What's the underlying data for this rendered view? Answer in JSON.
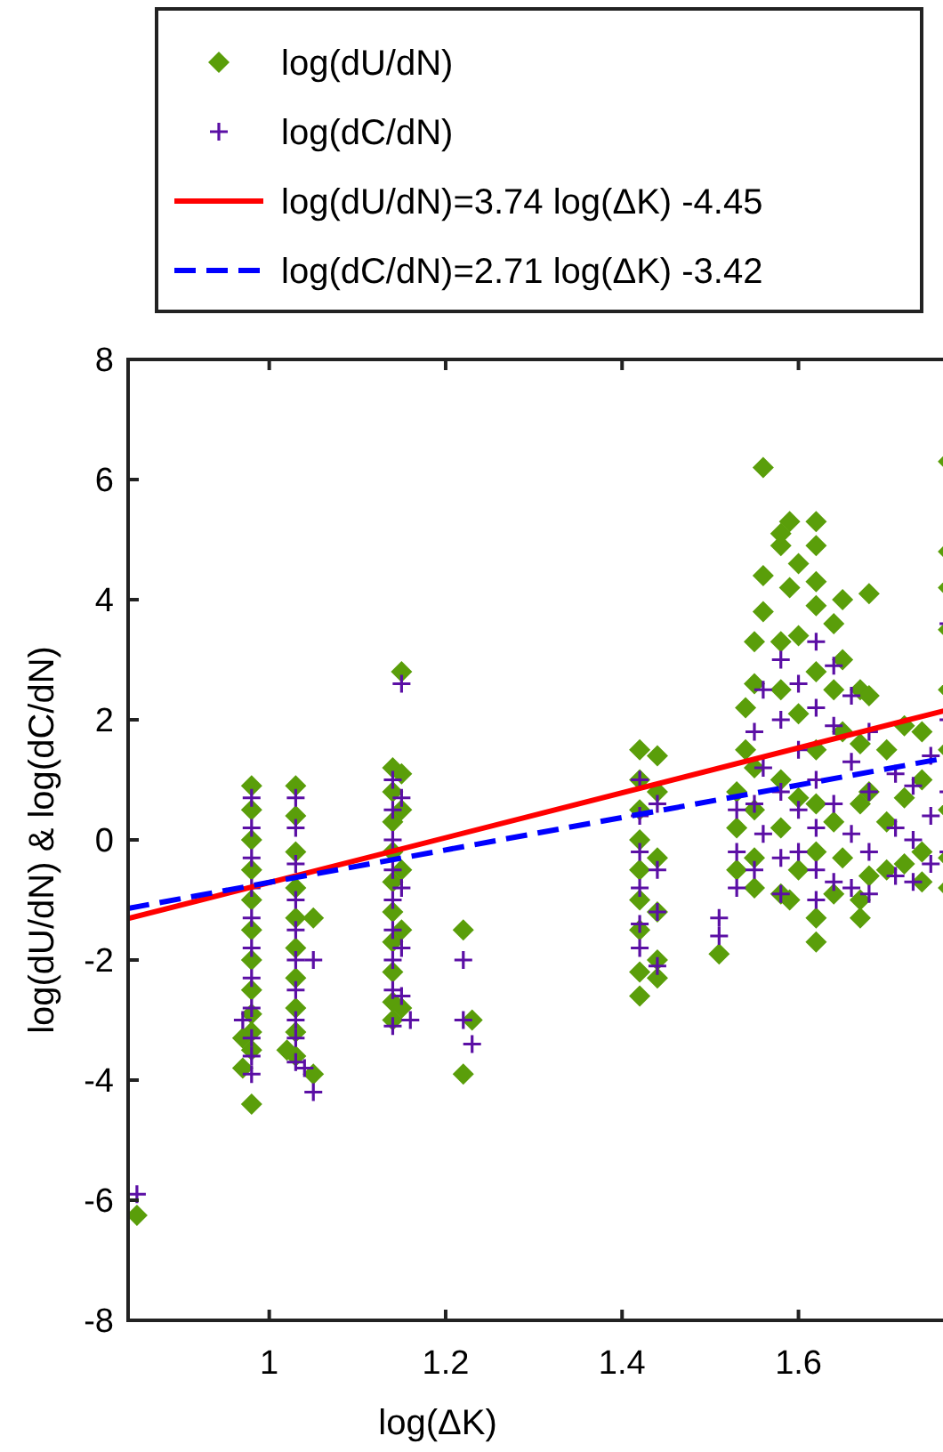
{
  "chart_data": {
    "type": "scatter",
    "xlabel": "log(ΔK)",
    "ylabel": "log(dU/dN) & log(dC/dN)",
    "xlim": [
      0.84,
      1.784
    ],
    "ylim": [
      -8,
      8
    ],
    "xticks": [
      1,
      1.2,
      1.4,
      1.6
    ],
    "yticks": [
      -8,
      -6,
      -4,
      -2,
      0,
      2,
      4,
      6,
      8
    ],
    "grid": false,
    "legend": "top",
    "series": [
      {
        "name": "log(dU/dN)",
        "marker": "diamond",
        "color": "#5a9e0a",
        "x": [
          0.85,
          0.98,
          0.98,
          0.98,
          0.98,
          0.98,
          0.98,
          0.98,
          0.98,
          0.98,
          0.98,
          0.98,
          0.98,
          0.97,
          0.97,
          1.03,
          1.03,
          1.03,
          1.03,
          1.03,
          1.03,
          1.03,
          1.03,
          1.03,
          1.03,
          1.02,
          1.05,
          1.05,
          1.14,
          1.14,
          1.14,
          1.14,
          1.14,
          1.14,
          1.14,
          1.14,
          1.14,
          1.14,
          1.15,
          1.15,
          1.15,
          1.15,
          1.15,
          1.15,
          1.22,
          1.22,
          1.23,
          1.42,
          1.42,
          1.42,
          1.42,
          1.42,
          1.42,
          1.42,
          1.42,
          1.42,
          1.44,
          1.44,
          1.44,
          1.44,
          1.44,
          1.44,
          1.51,
          1.53,
          1.53,
          1.53,
          1.54,
          1.54,
          1.55,
          1.55,
          1.55,
          1.55,
          1.55,
          1.55,
          1.56,
          1.56,
          1.56,
          1.58,
          1.58,
          1.58,
          1.58,
          1.58,
          1.58,
          1.58,
          1.59,
          1.59,
          1.59,
          1.6,
          1.6,
          1.6,
          1.6,
          1.6,
          1.62,
          1.62,
          1.62,
          1.62,
          1.62,
          1.62,
          1.62,
          1.62,
          1.62,
          1.62,
          1.64,
          1.64,
          1.64,
          1.64,
          1.65,
          1.65,
          1.65,
          1.65,
          1.67,
          1.67,
          1.67,
          1.67,
          1.67,
          1.68,
          1.68,
          1.68,
          1.68,
          1.7,
          1.7,
          1.7,
          1.72,
          1.72,
          1.72,
          1.74,
          1.74,
          1.74,
          1.74,
          1.77,
          1.77,
          1.77,
          1.77,
          1.77,
          1.77,
          1.77,
          1.77,
          1.77
        ],
        "values": [
          -6.25,
          0.9,
          0.5,
          0,
          -0.5,
          -1,
          -1.5,
          -2,
          -2.5,
          -2.9,
          -3.2,
          -3.5,
          -4.4,
          -3.3,
          -3.8,
          0.9,
          0.4,
          -0.2,
          -0.8,
          -1.3,
          -1.8,
          -2.3,
          -2.8,
          -3.2,
          -3.6,
          -3.5,
          -1.3,
          -3.9,
          1.2,
          0.8,
          0.3,
          -0.2,
          -0.7,
          -1.2,
          -1.7,
          -2.2,
          -2.7,
          -3.0,
          2.8,
          1.1,
          0.5,
          -0.5,
          -1.5,
          -2.8,
          -1.5,
          -3.9,
          -3.0,
          1.5,
          1.0,
          0.5,
          0,
          -0.5,
          -1.0,
          -1.5,
          -2.2,
          -2.6,
          1.4,
          0.8,
          -0.3,
          -1.2,
          -2.0,
          -2.3,
          -1.9,
          0.8,
          0.2,
          -0.5,
          2.2,
          1.5,
          3.3,
          2.6,
          1.2,
          0.5,
          -0.3,
          -0.8,
          6.2,
          4.4,
          3.8,
          4.9,
          5.1,
          3.3,
          2.5,
          1.0,
          0.2,
          -0.9,
          5.3,
          4.2,
          -1.0,
          4.6,
          3.4,
          2.1,
          0.7,
          -0.5,
          5.3,
          4.9,
          4.3,
          3.9,
          2.8,
          1.5,
          0.6,
          -0.2,
          -1.3,
          -1.7,
          3.6,
          2.5,
          0.3,
          -0.9,
          4.0,
          3.0,
          1.8,
          -0.3,
          2.5,
          1.6,
          0.6,
          -1.0,
          -1.3,
          4.1,
          2.4,
          0.8,
          -0.6,
          1.5,
          0.3,
          -0.5,
          1.9,
          0.7,
          -0.4,
          1.8,
          1.0,
          -0.2,
          -0.7,
          6.3,
          4.8,
          4.2,
          3.5,
          2.5,
          1.5,
          0.5,
          -0.3,
          -0.8
        ]
      },
      {
        "name": "log(dC/dN)",
        "marker": "cross",
        "color": "#5b0fa5",
        "x": [
          0.85,
          0.98,
          0.98,
          0.98,
          0.98,
          0.98,
          0.98,
          0.98,
          0.98,
          0.98,
          0.98,
          0.98,
          0.97,
          1.03,
          1.03,
          1.03,
          1.03,
          1.03,
          1.03,
          1.03,
          1.03,
          1.03,
          1.03,
          1.04,
          1.05,
          1.05,
          1.14,
          1.14,
          1.14,
          1.14,
          1.14,
          1.14,
          1.14,
          1.14,
          1.14,
          1.15,
          1.15,
          1.15,
          1.15,
          1.15,
          1.16,
          1.22,
          1.22,
          1.23,
          1.42,
          1.42,
          1.42,
          1.42,
          1.42,
          1.42,
          1.44,
          1.44,
          1.44,
          1.44,
          1.51,
          1.51,
          1.53,
          1.53,
          1.53,
          1.55,
          1.55,
          1.55,
          1.56,
          1.56,
          1.56,
          1.58,
          1.58,
          1.58,
          1.58,
          1.58,
          1.6,
          1.6,
          1.6,
          1.6,
          1.62,
          1.62,
          1.62,
          1.62,
          1.62,
          1.62,
          1.64,
          1.64,
          1.64,
          1.64,
          1.66,
          1.66,
          1.66,
          1.66,
          1.68,
          1.68,
          1.68,
          1.68,
          1.71,
          1.71,
          1.71,
          1.73,
          1.73,
          1.73,
          1.75,
          1.75,
          1.75,
          1.77,
          1.77,
          1.77,
          1.77
        ],
        "values": [
          -5.9,
          0.7,
          0.2,
          -0.3,
          -0.8,
          -1.3,
          -1.8,
          -2.3,
          -2.8,
          -3.3,
          -3.6,
          -3.9,
          -3.0,
          0.7,
          0.2,
          -0.4,
          -1.0,
          -1.5,
          -2.0,
          -2.5,
          -3.0,
          -3.7,
          -3.3,
          -3.8,
          -2.0,
          -4.2,
          1.0,
          0.5,
          0,
          -0.5,
          -1.0,
          -1.5,
          -2.0,
          -2.5,
          -3.1,
          2.6,
          0.7,
          -0.8,
          -1.8,
          -2.6,
          -3.0,
          -2.0,
          -3.0,
          -3.4,
          1.0,
          0.4,
          -0.2,
          -0.8,
          -1.4,
          -1.8,
          0.6,
          -0.5,
          -1.2,
          -2.1,
          -1.3,
          -1.6,
          0.5,
          -0.2,
          -0.8,
          1.8,
          0.6,
          -0.5,
          2.5,
          1.2,
          0.1,
          3.0,
          2.0,
          0.8,
          -0.3,
          -0.9,
          2.6,
          1.5,
          0.5,
          -0.2,
          3.3,
          2.2,
          1.0,
          0.2,
          -0.5,
          -1.0,
          2.9,
          1.9,
          0.6,
          -0.7,
          2.4,
          1.3,
          0.1,
          -0.8,
          1.8,
          0.8,
          -0.2,
          -0.9,
          1.1,
          0.2,
          -0.6,
          0.9,
          0,
          -0.7,
          1.4,
          0.4,
          -0.4,
          3.6,
          2.0,
          0.8,
          -0.2
        ]
      },
      {
        "name": "log(dU/dN)=3.74 log(ΔK) -4.45",
        "type": "line",
        "line_style": "solid",
        "color": "#ff0000",
        "x": [
          0.84,
          1.784
        ],
        "values": [
          -1.31,
          2.22
        ]
      },
      {
        "name": "log(dC/dN)=2.71 log(ΔK) -3.42",
        "type": "line",
        "line_style": "dashed",
        "color": "#0000ff",
        "x": [
          0.84,
          1.784
        ],
        "values": [
          -1.14,
          1.41
        ]
      }
    ]
  }
}
